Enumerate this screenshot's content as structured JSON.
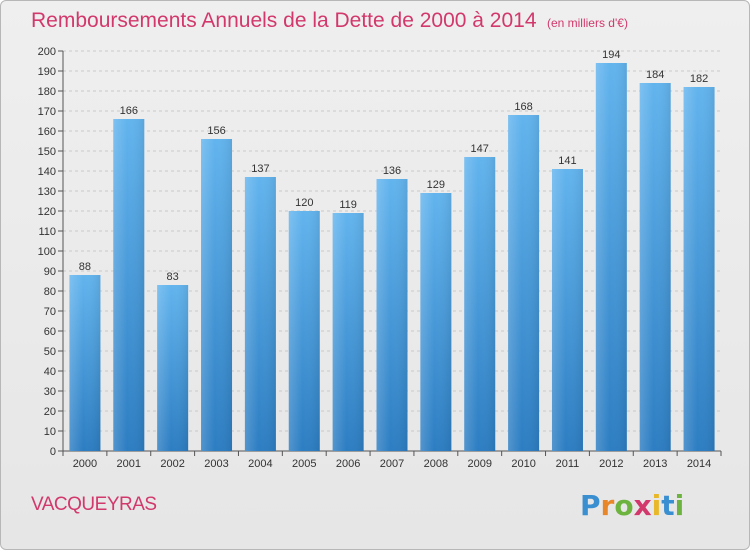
{
  "header": {
    "title": "Remboursements Annuels de la Dette de 2000 à 2014",
    "unit": "(en milliers d'€)"
  },
  "commune": "VACQUEYRAS",
  "brand": {
    "letters": [
      "P",
      "r",
      "o",
      "x",
      "i",
      "t",
      "i"
    ],
    "colors": [
      "#3a8fd1",
      "#e8862a",
      "#6db33f",
      "#d2386b",
      "#e8b82a",
      "#3a8fd1",
      "#6db33f"
    ]
  },
  "colors": {
    "bar_light": "#62b4ee",
    "bar_dark": "#2c7dc2",
    "title": "#d2386b"
  },
  "chart_data": {
    "type": "bar",
    "title": "Remboursements Annuels de la Dette de 2000 à 2014",
    "xlabel": "",
    "ylabel": "",
    "categories": [
      "2000",
      "2001",
      "2002",
      "2003",
      "2004",
      "2005",
      "2006",
      "2007",
      "2008",
      "2009",
      "2010",
      "2011",
      "2012",
      "2013",
      "2014"
    ],
    "values": [
      88,
      166,
      83,
      156,
      137,
      120,
      119,
      136,
      129,
      147,
      168,
      141,
      194,
      184,
      182
    ],
    "ylim": [
      0,
      200
    ],
    "ytick_step": 10,
    "grid": true
  }
}
